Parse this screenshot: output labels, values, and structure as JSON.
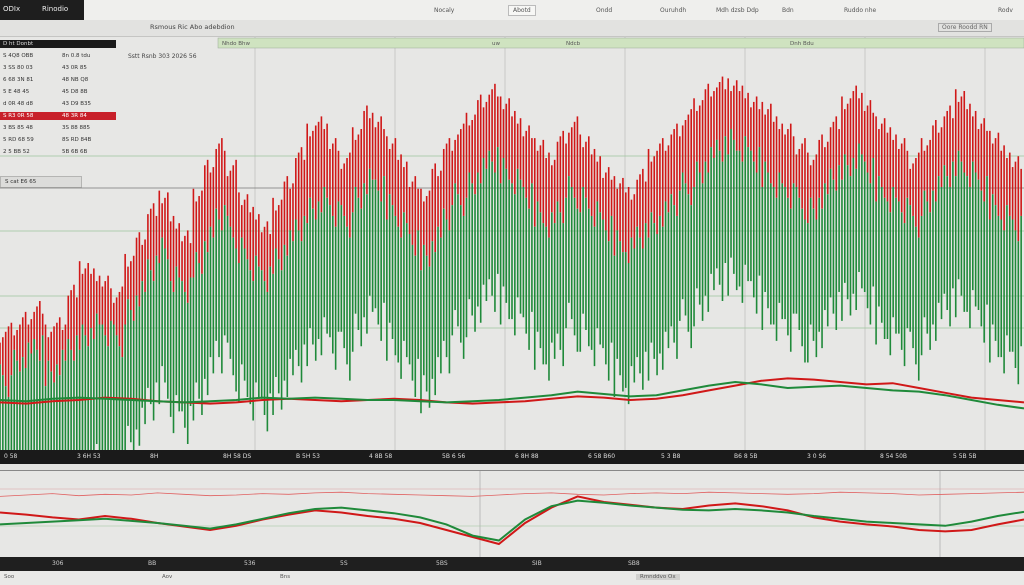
{
  "window": {
    "brand_left": "ODIx",
    "brand_right": "Rinodio",
    "toolbar": [
      "Nocaly",
      "Abotd",
      "Ondd",
      "Ouruhdh",
      "Mdh dzsb Ddp",
      "Bdn",
      "Ruddo nhe",
      "Rodv"
    ],
    "chart_title": "Rsmous Ric Abo adebdion",
    "range_label": "Oore Roodd RN",
    "sub_title": "Sstt Rsnb 303 2026 56",
    "overlay_labels": [
      "Nhdo Bhw",
      "uw",
      "Ndcb",
      "Dnh Bdu"
    ]
  },
  "left_panel": {
    "header": "D ht Donbt",
    "rows": [
      {
        "a": "S 4Q8 OBB",
        "b": "8n 0.8 tdu",
        "hl": false
      },
      {
        "a": "3 SS 80 03",
        "b": "43 0R 85",
        "hl": false
      },
      {
        "a": "6 68 3N 81",
        "b": "48 NB Q8",
        "hl": false
      },
      {
        "a": "5 E 48 45",
        "b": "45 D8 8B",
        "hl": false
      },
      {
        "a": "d 0R 48 d8",
        "b": "43 D9 B35",
        "hl": false
      },
      {
        "a": "S R3 0R 58",
        "b": "48 3R 84",
        "hl": true
      },
      {
        "a": "3 BS 85 48",
        "b": "3S 88 885",
        "hl": false
      },
      {
        "a": "5 RD 68 59",
        "b": "8S RD 84B",
        "hl": false
      },
      {
        "a": "2 5 BB 52",
        "b": "5B 6B 6B",
        "hl": false
      }
    ],
    "footer": "S cat  E6 65"
  },
  "time_axis": [
    "0 58",
    "3 6H 53",
    "8H",
    "8H 58 DS",
    "B 5H 53",
    "4 8B 58",
    "5B 6 56",
    "6 8H 88",
    "6 58 B60",
    "5 3 B8",
    "B6 8 5B",
    "3 0 S6",
    "8 54 50B",
    "5 5B 5B"
  ],
  "sub_axis": [
    "306",
    "BB",
    "536",
    "5S",
    "5BS",
    "SIB",
    "SB8"
  ],
  "footer_labels": [
    "Soo",
    "Aov",
    "Bns",
    "Rmnddvo Ox"
  ],
  "colors": {
    "up": "#1f8a3a",
    "down": "#d01818",
    "bg": "#e7e7e5"
  },
  "chart_data": [
    {
      "type": "bar",
      "description_series": [
        "up",
        "down"
      ],
      "series": [
        {
          "name": "",
          "color": "#1f8a3a",
          "values": [
            0.22,
            0.26,
            0.28,
            0.3,
            0.24,
            0.27,
            0.31,
            0.35,
            0.38,
            0.36,
            0.33,
            0.4,
            0.45,
            0.52,
            0.58,
            0.5,
            0.47,
            0.55,
            0.62,
            0.68,
            0.63,
            0.57,
            0.52,
            0.49,
            0.55,
            0.6,
            0.64,
            0.7,
            0.73,
            0.69,
            0.66,
            0.71,
            0.76,
            0.74,
            0.7,
            0.65,
            0.6,
            0.57,
            0.62,
            0.68,
            0.72,
            0.75,
            0.79,
            0.82,
            0.8,
            0.77,
            0.73,
            0.69,
            0.66,
            0.7,
            0.74,
            0.71,
            0.67,
            0.63,
            0.6,
            0.58,
            0.62,
            0.66,
            0.69,
            0.72,
            0.75,
            0.78,
            0.82,
            0.85,
            0.88,
            0.86,
            0.83,
            0.8,
            0.77,
            0.74,
            0.71,
            0.68,
            0.72,
            0.77,
            0.81,
            0.84,
            0.8,
            0.76,
            0.73,
            0.7,
            0.66,
            0.7,
            0.74,
            0.78,
            0.82,
            0.79,
            0.75,
            0.71,
            0.68,
            0.65
          ]
        },
        {
          "name": "",
          "color": "#d01818",
          "values": [
            0.28,
            0.3,
            0.33,
            0.36,
            0.29,
            0.31,
            0.4,
            0.46,
            0.44,
            0.42,
            0.39,
            0.49,
            0.55,
            0.63,
            0.66,
            0.59,
            0.55,
            0.66,
            0.74,
            0.8,
            0.74,
            0.66,
            0.62,
            0.58,
            0.64,
            0.7,
            0.78,
            0.84,
            0.86,
            0.8,
            0.76,
            0.84,
            0.9,
            0.87,
            0.81,
            0.76,
            0.7,
            0.66,
            0.73,
            0.8,
            0.84,
            0.88,
            0.93,
            0.96,
            0.92,
            0.88,
            0.84,
            0.8,
            0.76,
            0.82,
            0.86,
            0.82,
            0.78,
            0.73,
            0.7,
            0.67,
            0.72,
            0.77,
            0.8,
            0.84,
            0.88,
            0.92,
            0.96,
            0.98,
            0.97,
            0.95,
            0.92,
            0.9,
            0.86,
            0.84,
            0.8,
            0.77,
            0.82,
            0.87,
            0.92,
            0.95,
            0.91,
            0.86,
            0.83,
            0.8,
            0.76,
            0.81,
            0.86,
            0.9,
            0.94,
            0.9,
            0.86,
            0.82,
            0.78,
            0.75
          ]
        }
      ],
      "overlay_lines": [
        {
          "name": "",
          "color": "#d01818",
          "values": [
            0.18,
            0.17,
            0.19,
            0.2,
            0.22,
            0.21,
            0.19,
            0.18,
            0.17,
            0.18,
            0.2,
            0.21,
            0.2,
            0.19,
            0.2,
            0.21,
            0.2,
            0.18,
            0.17,
            0.18,
            0.19,
            0.21,
            0.23,
            0.22,
            0.2,
            0.21,
            0.24,
            0.28,
            0.32,
            0.36,
            0.38,
            0.37,
            0.35,
            0.33,
            0.34,
            0.3,
            0.26,
            0.22,
            0.2,
            0.18
          ]
        },
        {
          "name": "",
          "color": "#1f8a3a",
          "values": [
            0.2,
            0.19,
            0.21,
            0.22,
            0.21,
            0.2,
            0.19,
            0.18,
            0.19,
            0.2,
            0.22,
            0.21,
            0.22,
            0.21,
            0.2,
            0.2,
            0.19,
            0.18,
            0.19,
            0.2,
            0.22,
            0.24,
            0.27,
            0.25,
            0.23,
            0.24,
            0.28,
            0.32,
            0.35,
            0.33,
            0.3,
            0.31,
            0.32,
            0.3,
            0.28,
            0.27,
            0.24,
            0.2,
            0.16,
            0.13
          ]
        }
      ],
      "ylim": [
        0,
        1
      ]
    },
    {
      "type": "line",
      "series": [
        {
          "name": "",
          "color": "#d01818",
          "values": [
            0.55,
            0.52,
            0.48,
            0.45,
            0.5,
            0.46,
            0.4,
            0.35,
            0.3,
            0.36,
            0.45,
            0.52,
            0.58,
            0.55,
            0.5,
            0.46,
            0.4,
            0.3,
            0.2,
            0.1,
            0.4,
            0.62,
            0.78,
            0.7,
            0.66,
            0.62,
            0.6,
            0.65,
            0.68,
            0.64,
            0.58,
            0.48,
            0.42,
            0.38,
            0.35,
            0.3,
            0.28,
            0.3,
            0.38,
            0.45
          ]
        },
        {
          "name": "",
          "color": "#1f8a3a",
          "values": [
            0.38,
            0.4,
            0.42,
            0.44,
            0.46,
            0.43,
            0.4,
            0.36,
            0.32,
            0.38,
            0.46,
            0.54,
            0.6,
            0.62,
            0.58,
            0.54,
            0.48,
            0.38,
            0.22,
            0.15,
            0.45,
            0.64,
            0.72,
            0.69,
            0.65,
            0.62,
            0.59,
            0.58,
            0.6,
            0.58,
            0.55,
            0.5,
            0.46,
            0.42,
            0.4,
            0.38,
            0.36,
            0.42,
            0.5,
            0.56
          ]
        },
        {
          "name": "",
          "color": "#e06060",
          "values": [
            0.78,
            0.8,
            0.82,
            0.79,
            0.81,
            0.8,
            0.83,
            0.81,
            0.79,
            0.8,
            0.82,
            0.81,
            0.83,
            0.84,
            0.82,
            0.81,
            0.8,
            0.79,
            0.78,
            0.8,
            0.82,
            0.83,
            0.81,
            0.8,
            0.82,
            0.83,
            0.82,
            0.84,
            0.83,
            0.82,
            0.81,
            0.82,
            0.84,
            0.83,
            0.82,
            0.8,
            0.81,
            0.82,
            0.83,
            0.84
          ]
        }
      ],
      "ylim": [
        0,
        1
      ]
    }
  ]
}
